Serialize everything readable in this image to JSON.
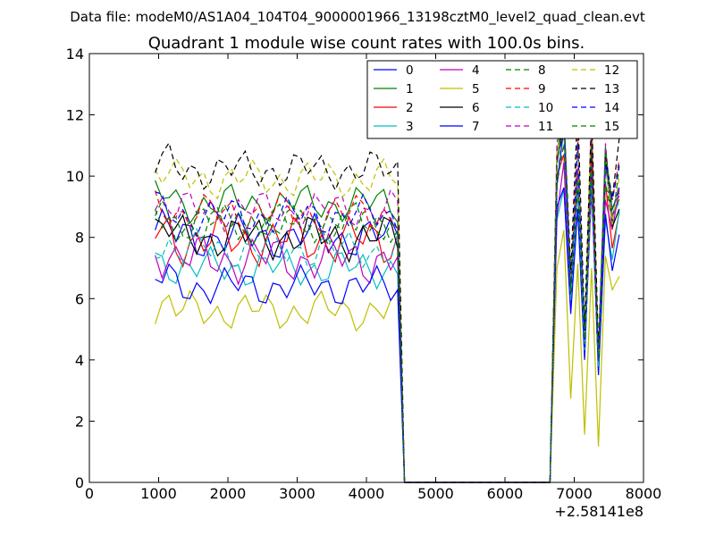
{
  "chart_data": {
    "type": "line",
    "suptitle": "Data file: modeM0/AS1A04_104T04_9000001966_13198cztM0_level2_quad_clean.evt",
    "title": "Quadrant 1 module wise count rates with 100.0s bins.",
    "xlabel": "",
    "ylabel": "",
    "x_offset_label": "+2.58141e8",
    "xlim": [
      0,
      8000
    ],
    "ylim": [
      0,
      14
    ],
    "xticks": [
      "0",
      "1000",
      "2000",
      "3000",
      "4000",
      "5000",
      "6000",
      "7000",
      "8000"
    ],
    "yticks": [
      "0",
      "2",
      "4",
      "6",
      "8",
      "10",
      "12",
      "14"
    ],
    "grid": false,
    "legend_position": "top-right",
    "legend_columns": 4,
    "x_segments": {
      "a": [
        950,
        1050,
        1150,
        1250,
        1350,
        1450,
        1550,
        1650,
        1750,
        1850,
        1950,
        2050,
        2150,
        2250,
        2350,
        2450,
        2550,
        2650,
        2750,
        2850,
        2950,
        3050,
        3150,
        3250,
        3350,
        3450,
        3550,
        3650,
        3750,
        3850,
        3950,
        4050,
        4150,
        4250,
        4350,
        4450
      ],
      "gap": [
        4550,
        6650
      ],
      "b": [
        6750,
        6850,
        6950,
        7050,
        7150,
        7250,
        7350,
        7450,
        7550,
        7650
      ]
    },
    "series": [
      {
        "name": "0",
        "color": "#0000ff",
        "dash": "solid",
        "mean": 8.0,
        "amp": 0.4,
        "peak": 11.0,
        "spread": 0.7
      },
      {
        "name": "1",
        "color": "#008000",
        "dash": "solid",
        "mean": 9.1,
        "amp": 0.35,
        "peak": 11.5,
        "spread": 0.7
      },
      {
        "name": "2",
        "color": "#ff0000",
        "dash": "solid",
        "mean": 7.9,
        "amp": 0.45,
        "peak": 11.0,
        "spread": 0.7
      },
      {
        "name": "3",
        "color": "#00bfbf",
        "dash": "solid",
        "mean": 7.0,
        "amp": 0.35,
        "peak": 10.2,
        "spread": 0.7
      },
      {
        "name": "4",
        "color": "#bf00bf",
        "dash": "solid",
        "mean": 7.3,
        "amp": 0.45,
        "peak": 10.5,
        "spread": 0.7
      },
      {
        "name": "5",
        "color": "#bfbf00",
        "dash": "solid",
        "mean": 5.6,
        "amp": 0.35,
        "peak": 7.8,
        "spread": 1.5
      },
      {
        "name": "6",
        "color": "#000000",
        "dash": "solid",
        "mean": 8.0,
        "amp": 0.4,
        "peak": 11.2,
        "spread": 0.7
      },
      {
        "name": "7",
        "color": "#0000ff",
        "dash": "solid",
        "mean": 6.4,
        "amp": 0.35,
        "peak": 10.0,
        "spread": 0.7
      },
      {
        "name": "8",
        "color": "#008000",
        "dash": "dashed",
        "mean": 8.4,
        "amp": 0.35,
        "peak": 11.7,
        "spread": 0.7
      },
      {
        "name": "9",
        "color": "#ff0000",
        "dash": "dashed",
        "mean": 8.8,
        "amp": 0.35,
        "peak": 11.6,
        "spread": 0.7
      },
      {
        "name": "10",
        "color": "#00bfbf",
        "dash": "dashed",
        "mean": 7.6,
        "amp": 0.35,
        "peak": 10.8,
        "spread": 0.7
      },
      {
        "name": "11",
        "color": "#bf00bf",
        "dash": "dashed",
        "mean": 8.9,
        "amp": 0.35,
        "peak": 11.8,
        "spread": 0.7
      },
      {
        "name": "12",
        "color": "#bfbf00",
        "dash": "dashed",
        "mean": 9.9,
        "amp": 0.35,
        "peak": 12.2,
        "spread": 0.7
      },
      {
        "name": "13",
        "color": "#000000",
        "dash": "dashed",
        "mean": 10.2,
        "amp": 0.35,
        "peak": 12.6,
        "spread": 0.7
      },
      {
        "name": "14",
        "color": "#0000ff",
        "dash": "dashed",
        "mean": 8.7,
        "amp": 0.35,
        "peak": 11.5,
        "spread": 0.7
      },
      {
        "name": "15",
        "color": "#008000",
        "dash": "dashed",
        "mean": 8.5,
        "amp": 0.35,
        "peak": 11.3,
        "spread": 0.7
      }
    ]
  }
}
